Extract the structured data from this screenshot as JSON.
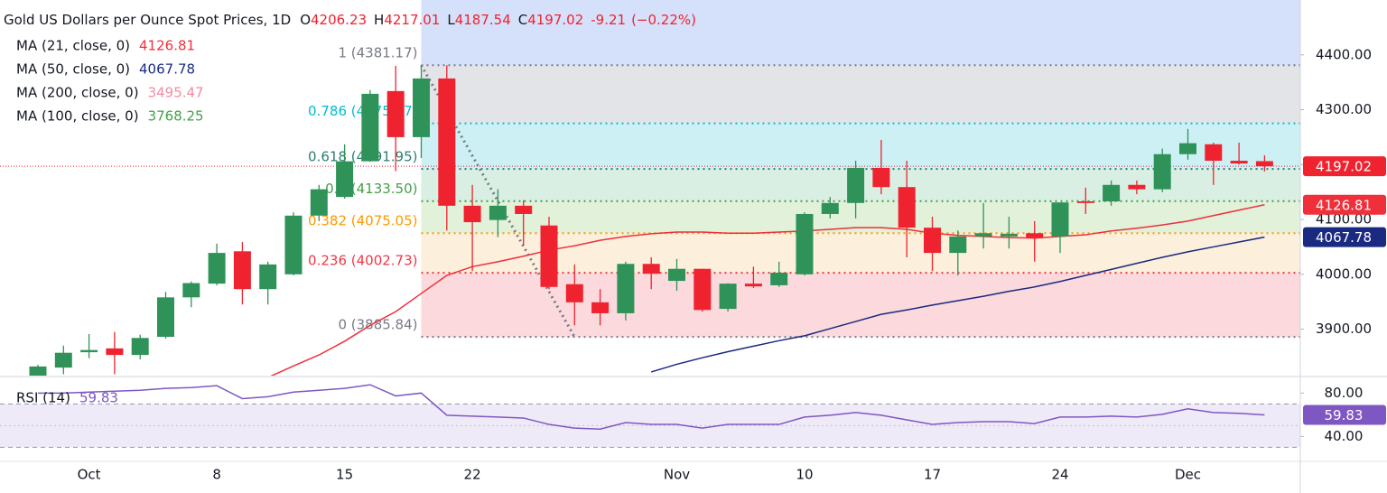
{
  "chart_data": {
    "type": "candlestick",
    "title": "Gold US Dollars per Ounce Spot Prices, 1D",
    "ohlc_keys": [
      "O",
      "H",
      "L",
      "C"
    ],
    "change": -9.21,
    "change_pct": {
      "value": -0.22,
      "label": "(−0.22%)"
    },
    "categories": [
      null,
      null,
      "Oct",
      null,
      null,
      null,
      null,
      "8",
      null,
      null,
      null,
      null,
      "15",
      null,
      null,
      null,
      null,
      "22",
      null,
      null,
      null,
      null,
      null,
      null,
      null,
      "Nov",
      null,
      null,
      null,
      null,
      "10",
      null,
      null,
      null,
      null,
      "17",
      null,
      null,
      null,
      null,
      "24",
      null,
      null,
      null,
      null,
      "Dec",
      null,
      null,
      null
    ],
    "open": [
      3815,
      3830,
      3858,
      3865,
      3853,
      3886,
      3958,
      3983,
      4042,
      3973,
      4000,
      4107,
      4141,
      4206,
      4334,
      4250,
      4357,
      4125,
      4099,
      4125,
      4089,
      3982,
      3949,
      3929,
      4019,
      3988,
      4010,
      3937,
      3983,
      3980,
      4000,
      4110,
      4130,
      4194,
      4159,
      4085,
      4039,
      4069,
      4069,
      4075,
      4069,
      4133,
      4133,
      4163,
      4155,
      4219,
      4237,
      4207,
      4206.23
    ],
    "high": [
      3835,
      3870,
      3891,
      3895,
      3890,
      3968,
      3987,
      4056,
      4059,
      4023,
      4113,
      4163,
      4237,
      4336,
      4380,
      4381,
      4381,
      4163,
      4155,
      4135,
      4105,
      4018,
      3973,
      4023,
      4031,
      4028,
      4010,
      3984,
      4014,
      4023,
      4113,
      4141,
      4207,
      4245,
      4207,
      4105,
      4080,
      4130,
      4105,
      4097,
      4131,
      4158,
      4171,
      4171,
      4229,
      4265,
      4240,
      4240,
      4217.01
    ],
    "low": [
      3812,
      3818,
      3847,
      3818,
      3845,
      3883,
      3940,
      3980,
      3945,
      3945,
      3998,
      4097,
      4138,
      4205,
      4188,
      4212,
      4080,
      4006,
      4068,
      4052,
      3973,
      3907,
      3907,
      3916,
      3973,
      3970,
      3932,
      3932,
      3975,
      3977,
      3998,
      4102,
      4102,
      4146,
      4031,
      4006,
      3998,
      4047,
      4047,
      4023,
      4039,
      4110,
      4125,
      4146,
      4150,
      4209,
      4163,
      4200,
      4187.54
    ],
    "close": [
      3832,
      3857,
      3862,
      3853,
      3884,
      3958,
      3984,
      4039,
      3973,
      4018,
      4107,
      4155,
      4206,
      4329,
      4250,
      4357,
      4125,
      4095,
      4125,
      4110,
      3977,
      3949,
      3929,
      4019,
      4001,
      4010,
      3935,
      3983,
      3978,
      4003,
      4110,
      4130,
      4194,
      4159,
      4085,
      4039,
      4069,
      4075,
      4074,
      4067,
      4131,
      4130,
      4163,
      4155,
      4219,
      4239,
      4207,
      4202,
      4197.02
    ],
    "up_color": "#2f9359",
    "down_color": "#ef232f",
    "ylim": [
      3817,
      4500
    ],
    "yticks": [
      {
        "value": 3900,
        "label": "3900.00"
      },
      {
        "value": 4000,
        "label": "4000.00"
      },
      {
        "value": 4100,
        "label": "4100.00"
      },
      {
        "value": 4200,
        "label": "4200.00"
      },
      {
        "value": 4300,
        "label": "4300.00"
      },
      {
        "value": 4400,
        "label": "4400.00"
      }
    ],
    "moving_averages": [
      {
        "name": "MA (21, close, 0)",
        "value": 4126.81,
        "color": "#ef2f3a",
        "values": [
          null,
          null,
          null,
          null,
          null,
          null,
          null,
          null,
          null,
          3812,
          3833,
          3853,
          3878,
          3907,
          3932,
          3965,
          3998,
          4014,
          4023,
          4033,
          4044,
          4052,
          4062,
          4069,
          4074,
          4077,
          4077,
          4075,
          4075,
          4077,
          4079,
          4082,
          4085,
          4085,
          4082,
          4075,
          4071,
          4069,
          4067,
          4066,
          4069,
          4072,
          4079,
          4084,
          4090,
          4097,
          4107,
          4117,
          4126.81
        ]
      },
      {
        "name": "MA (50, close, 0)",
        "value": 4067.78,
        "color": "#1a2a80",
        "values": [
          null,
          null,
          null,
          null,
          null,
          null,
          null,
          null,
          null,
          null,
          null,
          null,
          null,
          null,
          null,
          null,
          null,
          null,
          null,
          null,
          null,
          null,
          null,
          null,
          3822,
          3836,
          3848,
          3859,
          3869,
          3879,
          3888,
          3901,
          3914,
          3927,
          3935,
          3944,
          3952,
          3960,
          3969,
          3977,
          3987,
          3998,
          4009,
          4020,
          4031,
          4041,
          4050,
          4059,
          4067.78
        ]
      },
      {
        "name": "MA (200, close, 0)",
        "value": 3495.47,
        "color": "#f38aa3"
      },
      {
        "name": "MA (100, close, 0)",
        "value": 3768.25,
        "color": "#43a047"
      }
    ],
    "fibonacci": {
      "top_fill": "#d5e0fb",
      "levels": [
        {
          "label": "1 (4381.17)",
          "price": 4381.17,
          "color": "#787b86",
          "fill": "#e3e4e8"
        },
        {
          "label": "0.786 (4275.17)",
          "price": 4275.17,
          "color": "#00bcd4",
          "fill": "#cdf0f4"
        },
        {
          "label": "0.618 (4191.95)",
          "price": 4191.95,
          "color": "#2a7f6f",
          "fill": "#d9efe4"
        },
        {
          "label": "0.5 (4133.50)",
          "price": 4133.5,
          "color": "#43a047",
          "fill": "#e2f1da"
        },
        {
          "label": "0.382 (4075.05)",
          "price": 4075.05,
          "color": "#ff9800",
          "fill": "#fcefdc"
        },
        {
          "label": "0.236 (4002.73)",
          "price": 4002.73,
          "color": "#f23645",
          "fill": "#fbd9dc"
        },
        {
          "label": "0 (3885.84)",
          "price": 3885.84,
          "color": "#787b86"
        }
      ]
    },
    "rsi": {
      "type": "line",
      "name": "RSI (14)",
      "color": "#7e57c2",
      "band_fill": "#efeaf8",
      "values": [
        80,
        80,
        80.9,
        81.7,
        82.6,
        84.3,
        85.1,
        86.8,
        74.9,
        76.6,
        80.9,
        82.6,
        84.3,
        87.7,
        77.4,
        80,
        59.6,
        58.7,
        57.9,
        57,
        51.1,
        47.7,
        46.8,
        52.8,
        51.1,
        51.1,
        47.7,
        51.1,
        51.1,
        51.1,
        57.9,
        59.6,
        62.1,
        59.6,
        55.3,
        51.1,
        52.8,
        53.6,
        53.6,
        51.9,
        57.9,
        57.9,
        58.7,
        57.9,
        60.4,
        65.5,
        62.1,
        61.3,
        59.83
      ],
      "ylim": [
        17,
        93.6
      ],
      "yticks": [
        {
          "value": 80,
          "label": "80.00"
        },
        {
          "value": 40,
          "label": "40.00"
        }
      ],
      "bands": [
        70,
        50,
        30
      ]
    }
  }
}
